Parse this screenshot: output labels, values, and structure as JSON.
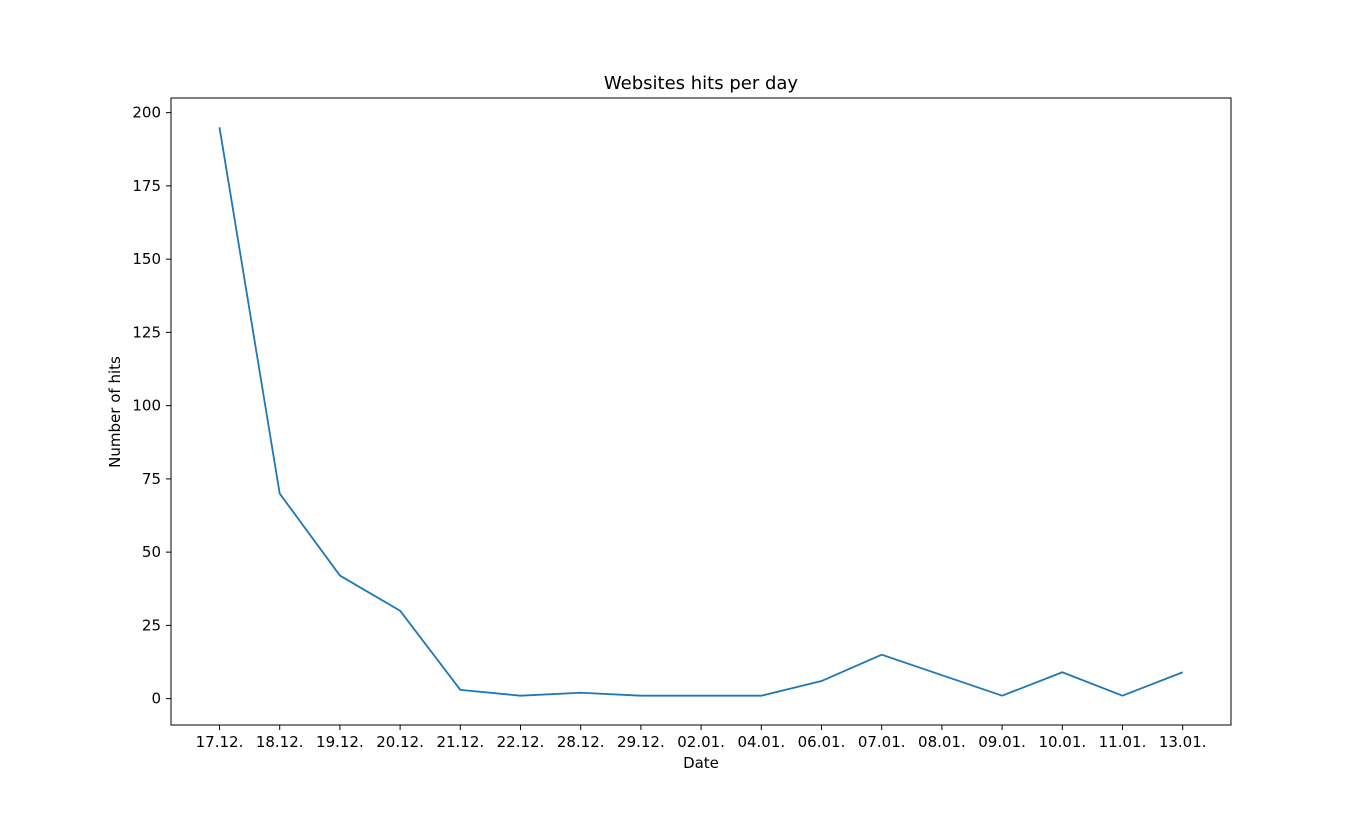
{
  "chart_data": {
    "type": "line",
    "title": "Websites hits per day",
    "xlabel": "Date",
    "ylabel": "Number of hits",
    "categories": [
      "17.12.",
      "18.12.",
      "19.12.",
      "20.12.",
      "21.12.",
      "22.12.",
      "28.12.",
      "29.12.",
      "02.01.",
      "04.01.",
      "06.01.",
      "07.01.",
      "08.01.",
      "09.01.",
      "10.01.",
      "11.01.",
      "13.01."
    ],
    "series": [
      {
        "values": [
          195,
          70,
          42,
          30,
          3,
          1,
          2,
          1,
          1,
          1,
          6,
          15,
          8,
          1,
          9,
          1,
          9
        ],
        "color": "#1f77b4"
      }
    ],
    "ylim": [
      -9,
      205
    ],
    "yticks": [
      0,
      25,
      50,
      75,
      100,
      125,
      150,
      175,
      200
    ],
    "grid": false,
    "legend": "none"
  }
}
